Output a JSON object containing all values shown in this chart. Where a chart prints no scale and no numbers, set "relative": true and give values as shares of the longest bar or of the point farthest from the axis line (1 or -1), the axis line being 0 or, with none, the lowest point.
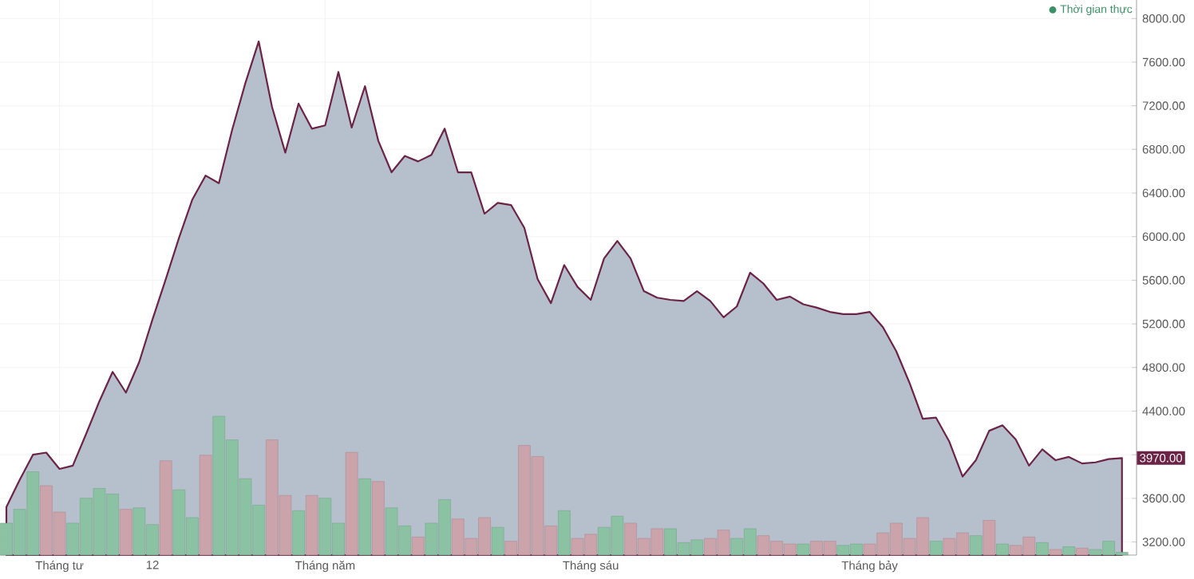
{
  "chart_data": [
    {
      "type": "area",
      "categories": [
        null,
        null,
        null,
        null,
        "Tháng tư",
        null,
        null,
        null,
        null,
        null,
        null,
        "12",
        null,
        null,
        null,
        null,
        null,
        null,
        null,
        null,
        null,
        null,
        null,
        null,
        "Tháng năm",
        null,
        null,
        null,
        null,
        null,
        null,
        null,
        null,
        null,
        null,
        null,
        null,
        null,
        null,
        null,
        null,
        null,
        null,
        null,
        "Tháng sáu",
        null,
        null,
        null,
        null,
        null,
        null,
        null,
        null,
        null,
        null,
        null,
        null,
        null,
        null,
        null,
        null,
        null,
        null,
        null,
        null,
        "Tháng bảy",
        null,
        null,
        null,
        null,
        null,
        null,
        null,
        null,
        null,
        null,
        null,
        null,
        null,
        null,
        null,
        null,
        null,
        null,
        null
      ],
      "series": [
        {
          "color": "#6b2346",
          "values": [
            3520,
            3770,
            4000,
            4020,
            3870,
            3900,
            4190,
            4490,
            4760,
            4570,
            4850,
            5240,
            5610,
            5990,
            6340,
            6560,
            6490,
            6980,
            7410,
            7790,
            7190,
            6770,
            7220,
            6990,
            7020,
            7510,
            7000,
            7380,
            6880,
            6590,
            6740,
            6690,
            6750,
            6990,
            6590,
            6590,
            6210,
            6310,
            6290,
            6080,
            5610,
            5390,
            5740,
            5540,
            5420,
            5800,
            5960,
            5800,
            5500,
            5440,
            5420,
            5410,
            5500,
            5410,
            5260,
            5360,
            5670,
            5570,
            5420,
            5450,
            5380,
            5350,
            5310,
            5290,
            5290,
            5310,
            5170,
            4950,
            4660,
            4330,
            4340,
            4120,
            3800,
            3950,
            4220,
            4270,
            4140,
            3900,
            4050,
            3950,
            3980,
            3920,
            3930,
            3960,
            3970
          ],
          "value_labels": [
            null,
            null,
            null,
            null,
            null,
            null,
            null,
            null,
            null,
            null,
            null,
            null,
            null,
            null,
            null,
            null,
            null,
            null,
            null,
            null,
            null,
            null,
            null,
            null,
            null,
            null,
            null,
            null,
            null,
            null,
            null,
            null,
            null,
            null,
            null,
            null,
            null,
            null,
            null,
            null,
            null,
            null,
            null,
            null,
            null,
            null,
            null,
            null,
            null,
            null,
            null,
            null,
            null,
            null,
            null,
            null,
            null,
            null,
            null,
            null,
            null,
            null,
            null,
            null,
            null,
            null,
            null,
            null,
            null,
            null,
            null,
            null,
            null,
            null,
            null,
            null,
            null,
            null,
            null,
            null,
            null,
            null,
            null,
            null,
            "3970.00"
          ]
        }
      ],
      "ylim": [
        3080,
        8170
      ],
      "yticks": [
        {
          "value": 3200,
          "label": "3200.00"
        },
        {
          "value": 3600,
          "label": "3600.00"
        },
        {
          "value": 4000,
          "label": null
        },
        {
          "value": 4400,
          "label": "4400.00"
        },
        {
          "value": 4800,
          "label": "4800.00"
        },
        {
          "value": 5200,
          "label": "5200.00"
        },
        {
          "value": 5600,
          "label": "5600.00"
        },
        {
          "value": 6000,
          "label": "6000.00"
        },
        {
          "value": 6400,
          "label": "6400.00"
        },
        {
          "value": 6800,
          "label": "6800.00"
        },
        {
          "value": 7200,
          "label": "7200.00"
        },
        {
          "value": 7600,
          "label": "7600.00"
        },
        {
          "value": 8000,
          "label": "8000.00"
        }
      ],
      "grid": true,
      "annotations": [
        "Thời gian thực"
      ]
    },
    {
      "type": "bar",
      "relative": true,
      "categories": [
        null,
        null,
        null,
        null,
        null,
        null,
        null,
        null,
        null,
        null,
        null,
        null,
        null,
        null,
        null,
        null,
        null,
        null,
        null,
        null,
        null,
        null,
        null,
        null,
        null,
        null,
        null,
        null,
        null,
        null,
        null,
        null,
        null,
        null,
        null,
        null,
        null,
        null,
        null,
        null,
        null,
        null,
        null,
        null,
        null,
        null,
        null,
        null,
        null,
        null,
        null,
        null,
        null,
        null,
        null,
        null,
        null,
        null,
        null,
        null,
        null,
        null,
        null,
        null,
        null,
        null,
        null,
        null,
        null,
        null,
        null,
        null,
        null,
        null,
        null,
        null,
        null,
        null,
        null,
        null,
        null,
        null,
        null,
        null,
        null
      ],
      "values": [
        0.23,
        0.33,
        0.6,
        0.5,
        0.31,
        0.23,
        0.41,
        0.48,
        0.44,
        0.33,
        0.34,
        0.22,
        0.68,
        0.47,
        0.27,
        0.72,
        1,
        0.83,
        0.55,
        0.36,
        0.83,
        0.43,
        0.32,
        0.43,
        0.41,
        0.23,
        0.74,
        0.55,
        0.53,
        0.34,
        0.21,
        0.13,
        0.23,
        0.4,
        0.26,
        0.12,
        0.27,
        0.2,
        0.1,
        0.79,
        0.71,
        0.21,
        0.32,
        0.12,
        0.15,
        0.2,
        0.28,
        0.23,
        0.12,
        0.19,
        0.19,
        0.09,
        0.11,
        0.12,
        0.18,
        0.12,
        0.19,
        0.14,
        0.1,
        0.08,
        0.08,
        0.1,
        0.1,
        0.07,
        0.08,
        0.08,
        0.16,
        0.23,
        0.12,
        0.27,
        0.1,
        0.12,
        0.16,
        0.14,
        0.25,
        0.08,
        0.07,
        0.13,
        0.09,
        0.04,
        0.06,
        0.05,
        0.04,
        0.1,
        0.02
      ],
      "colors": [
        "#8cc2a4",
        "#8cc2a4",
        "#8cc2a4",
        "#caa3ab",
        "#caa3ab",
        "#8cc2a4",
        "#8cc2a4",
        "#8cc2a4",
        "#8cc2a4",
        "#caa3ab",
        "#8cc2a4",
        "#8cc2a4",
        "#caa3ab",
        "#8cc2a4",
        "#8cc2a4",
        "#caa3ab",
        "#8cc2a4",
        "#8cc2a4",
        "#8cc2a4",
        "#8cc2a4",
        "#caa3ab",
        "#caa3ab",
        "#8cc2a4",
        "#caa3ab",
        "#8cc2a4",
        "#8cc2a4",
        "#caa3ab",
        "#8cc2a4",
        "#caa3ab",
        "#8cc2a4",
        "#8cc2a4",
        "#caa3ab",
        "#8cc2a4",
        "#8cc2a4",
        "#caa3ab",
        "#caa3ab",
        "#caa3ab",
        "#8cc2a4",
        "#caa3ab",
        "#caa3ab",
        "#caa3ab",
        "#caa3ab",
        "#8cc2a4",
        "#caa3ab",
        "#caa3ab",
        "#8cc2a4",
        "#8cc2a4",
        "#caa3ab",
        "#caa3ab",
        "#caa3ab",
        "#8cc2a4",
        "#8cc2a4",
        "#8cc2a4",
        "#caa3ab",
        "#caa3ab",
        "#8cc2a4",
        "#8cc2a4",
        "#caa3ab",
        "#caa3ab",
        "#caa3ab",
        "#8cc2a4",
        "#caa3ab",
        "#caa3ab",
        "#8cc2a4",
        "#8cc2a4",
        "#caa3ab",
        "#caa3ab",
        "#caa3ab",
        "#caa3ab",
        "#caa3ab",
        "#8cc2a4",
        "#caa3ab",
        "#caa3ab",
        "#8cc2a4",
        "#caa3ab",
        "#8cc2a4",
        "#caa3ab",
        "#caa3ab",
        "#8cc2a4",
        "#caa3ab",
        "#8cc2a4",
        "#caa3ab",
        "#8cc2a4",
        "#8cc2a4",
        "#8cc2a4"
      ]
    }
  ]
}
